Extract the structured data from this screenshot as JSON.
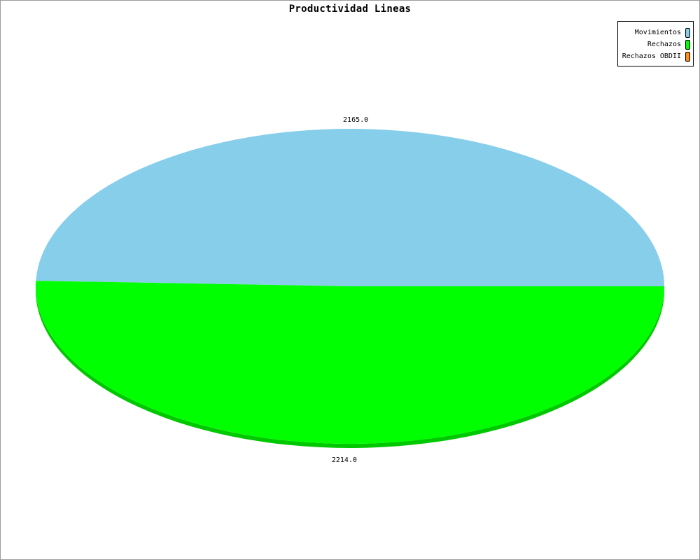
{
  "chart_data": {
    "type": "pie",
    "title": "Productividad Lineas",
    "slices": [
      {
        "name": "Movimientos",
        "value": 2165.0,
        "label": "2165.0",
        "color": "#87ceeb",
        "side_color": "#6fb4d2"
      },
      {
        "name": "Rechazos",
        "value": 2214.0,
        "label": "2214.0",
        "color": "#00ff00",
        "side_color": "#00c800"
      },
      {
        "name": "Rechazos OBDII",
        "value": 0,
        "label": "",
        "color": "#ff8c1a",
        "side_color": "#d9700a"
      }
    ],
    "legend_position": "top-right",
    "style": "3d"
  }
}
